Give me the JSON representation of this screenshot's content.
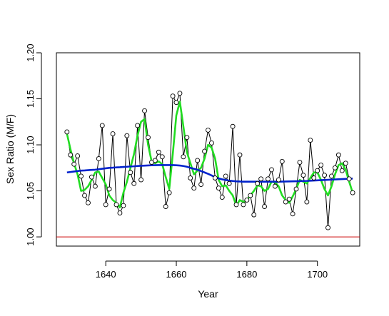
{
  "chart_data": {
    "type": "line",
    "title": "",
    "xlabel": "Year",
    "ylabel": "Sex Ratio (M/F)",
    "xlim": [
      1626,
      1712
    ],
    "ylim": [
      0.99,
      1.2
    ],
    "x_ticks": [
      1640,
      1660,
      1680,
      1700
    ],
    "x_tick_labels": [
      "1640",
      "1660",
      "1680",
      "1700"
    ],
    "y_ticks": [
      1.0,
      1.05,
      1.1,
      1.15,
      1.2
    ],
    "y_tick_labels": [
      "1.00",
      "1.05",
      "1.10",
      "1.15",
      "1.20"
    ],
    "grid": false,
    "legend": "none",
    "reference_line": {
      "y": 1.0,
      "color": "#cc0000"
    },
    "x": [
      1629,
      1630,
      1631,
      1632,
      1633,
      1634,
      1635,
      1636,
      1637,
      1638,
      1639,
      1640,
      1641,
      1642,
      1643,
      1644,
      1645,
      1646,
      1647,
      1648,
      1649,
      1650,
      1651,
      1652,
      1653,
      1654,
      1655,
      1656,
      1657,
      1658,
      1659,
      1660,
      1661,
      1662,
      1663,
      1664,
      1665,
      1666,
      1667,
      1668,
      1669,
      1670,
      1671,
      1672,
      1673,
      1674,
      1675,
      1676,
      1677,
      1678,
      1679,
      1680,
      1681,
      1682,
      1683,
      1684,
      1685,
      1686,
      1687,
      1688,
      1689,
      1690,
      1691,
      1692,
      1693,
      1694,
      1695,
      1696,
      1697,
      1698,
      1699,
      1700,
      1701,
      1702,
      1703,
      1704,
      1705,
      1706,
      1707,
      1708,
      1709,
      1710
    ],
    "series": [
      {
        "style": "thin line with open circle points",
        "color": "#000000",
        "values": [
          1.114,
          1.089,
          1.079,
          1.088,
          1.066,
          1.045,
          1.037,
          1.065,
          1.055,
          1.085,
          1.121,
          1.035,
          1.052,
          1.112,
          1.035,
          1.026,
          1.034,
          1.11,
          1.07,
          1.058,
          1.121,
          1.062,
          1.137,
          1.108,
          1.081,
          1.083,
          1.092,
          1.087,
          1.033,
          1.048,
          1.153,
          1.146,
          1.156,
          1.087,
          1.108,
          1.064,
          1.053,
          1.083,
          1.057,
          1.093,
          1.116,
          1.102,
          1.064,
          1.053,
          1.043,
          1.066,
          1.058,
          1.12,
          1.035,
          1.089,
          1.035,
          1.04,
          1.045,
          1.024,
          1.058,
          1.063,
          1.033,
          1.063,
          1.073,
          1.055,
          1.062,
          1.082,
          1.038,
          1.041,
          1.025,
          1.052,
          1.081,
          1.067,
          1.038,
          1.105,
          1.064,
          1.072,
          1.078,
          1.067,
          1.01,
          1.066,
          1.075,
          1.089,
          1.072,
          1.08,
          1.063,
          1.048
        ]
      },
      {
        "style": "thick line",
        "color": "#22dd22",
        "values": [
          1.112,
          1.095,
          1.08,
          1.068,
          1.05,
          1.051,
          1.055,
          1.062,
          1.07,
          1.071,
          1.064,
          1.057,
          1.045,
          1.04,
          1.037,
          1.032,
          1.048,
          1.06,
          1.075,
          1.09,
          1.11,
          1.125,
          1.128,
          1.1,
          1.082,
          1.08,
          1.082,
          1.079,
          1.065,
          1.052,
          1.09,
          1.132,
          1.147,
          1.12,
          1.092,
          1.08,
          1.068,
          1.072,
          1.075,
          1.085,
          1.1,
          1.097,
          1.085,
          1.062,
          1.055,
          1.056,
          1.05,
          1.045,
          1.034,
          1.04,
          1.038,
          1.04,
          1.045,
          1.05,
          1.056,
          1.055,
          1.05,
          1.052,
          1.06,
          1.059,
          1.055,
          1.045,
          1.04,
          1.037,
          1.044,
          1.052,
          1.062,
          1.06,
          1.058,
          1.064,
          1.07,
          1.07,
          1.062,
          1.052,
          1.045,
          1.055,
          1.068,
          1.078,
          1.08,
          1.073,
          1.06,
          1.048
        ]
      },
      {
        "style": "thick smooth line",
        "color": "#0022cc",
        "values": [
          1.07,
          1.0705,
          1.071,
          1.0715,
          1.072,
          1.0722,
          1.0725,
          1.0728,
          1.073,
          1.0735,
          1.074,
          1.0745,
          1.075,
          1.0752,
          1.0755,
          1.0757,
          1.076,
          1.0762,
          1.0765,
          1.0767,
          1.077,
          1.0772,
          1.0774,
          1.0776,
          1.0778,
          1.0779,
          1.078,
          1.078,
          1.078,
          1.078,
          1.078,
          1.0778,
          1.0775,
          1.077,
          1.0762,
          1.075,
          1.074,
          1.073,
          1.0715,
          1.07,
          1.0685,
          1.0668,
          1.065,
          1.0635,
          1.0625,
          1.0618,
          1.0612,
          1.0607,
          1.0604,
          1.0602,
          1.06,
          1.06,
          1.06,
          1.06,
          1.06,
          1.06,
          1.06,
          1.06,
          1.06,
          1.06,
          1.06,
          1.0601,
          1.0602,
          1.0603,
          1.0604,
          1.0605,
          1.0606,
          1.0607,
          1.0608,
          1.061,
          1.0612,
          1.0614,
          1.0616,
          1.0618,
          1.062,
          1.0622,
          1.0624,
          1.0626,
          1.0628,
          1.063,
          1.0632,
          1.0634
        ]
      }
    ]
  }
}
